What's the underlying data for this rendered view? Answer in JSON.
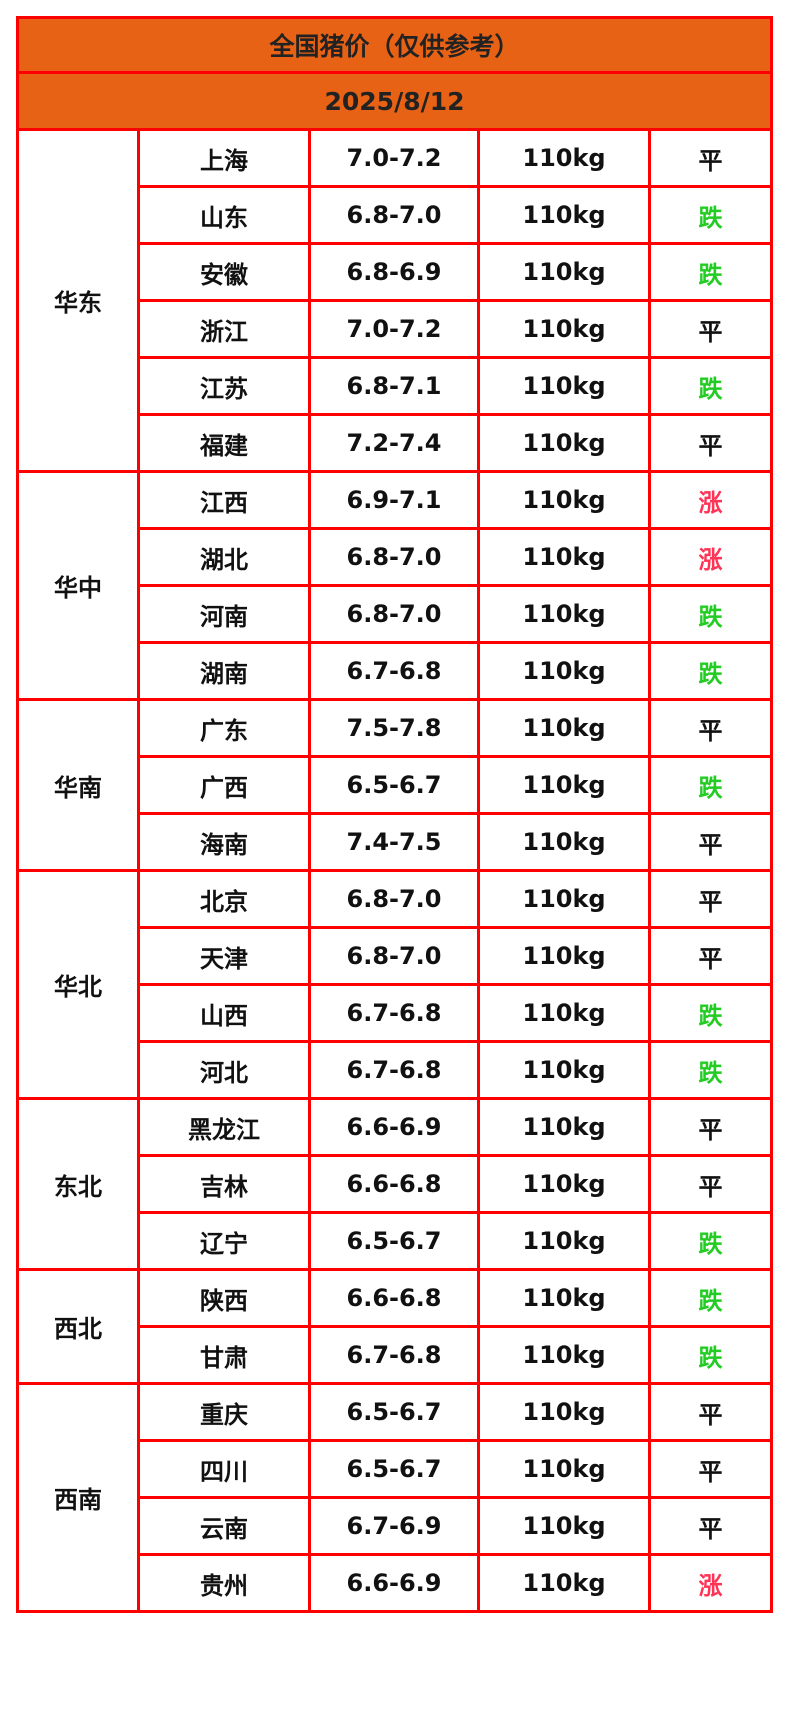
{
  "title": "全国猪价（仅供参考）",
  "date": "2025/8/12",
  "colors": {
    "header_bg": "#e86216",
    "border": "#ff0000",
    "flat": "#111111",
    "down": "#22cc22",
    "up": "#ff3355"
  },
  "regions": [
    {
      "name": "华东",
      "rows": [
        {
          "province": "上海",
          "price": "7.0-7.2",
          "weight": "110kg",
          "trend": "平"
        },
        {
          "province": "山东",
          "price": "6.8-7.0",
          "weight": "110kg",
          "trend": "跌"
        },
        {
          "province": "安徽",
          "price": "6.8-6.9",
          "weight": "110kg",
          "trend": "跌"
        },
        {
          "province": "浙江",
          "price": "7.0-7.2",
          "weight": "110kg",
          "trend": "平"
        },
        {
          "province": "江苏",
          "price": "6.8-7.1",
          "weight": "110kg",
          "trend": "跌"
        },
        {
          "province": "福建",
          "price": "7.2-7.4",
          "weight": "110kg",
          "trend": "平"
        }
      ]
    },
    {
      "name": "华中",
      "rows": [
        {
          "province": "江西",
          "price": "6.9-7.1",
          "weight": "110kg",
          "trend": "涨"
        },
        {
          "province": "湖北",
          "price": "6.8-7.0",
          "weight": "110kg",
          "trend": "涨"
        },
        {
          "province": "河南",
          "price": "6.8-7.0",
          "weight": "110kg",
          "trend": "跌"
        },
        {
          "province": "湖南",
          "price": "6.7-6.8",
          "weight": "110kg",
          "trend": "跌"
        }
      ]
    },
    {
      "name": "华南",
      "rows": [
        {
          "province": "广东",
          "price": "7.5-7.8",
          "weight": "110kg",
          "trend": "平"
        },
        {
          "province": "广西",
          "price": "6.5-6.7",
          "weight": "110kg",
          "trend": "跌"
        },
        {
          "province": "海南",
          "price": "7.4-7.5",
          "weight": "110kg",
          "trend": "平"
        }
      ]
    },
    {
      "name": "华北",
      "rows": [
        {
          "province": "北京",
          "price": "6.8-7.0",
          "weight": "110kg",
          "trend": "平"
        },
        {
          "province": "天津",
          "price": "6.8-7.0",
          "weight": "110kg",
          "trend": "平"
        },
        {
          "province": "山西",
          "price": "6.7-6.8",
          "weight": "110kg",
          "trend": "跌"
        },
        {
          "province": "河北",
          "price": "6.7-6.8",
          "weight": "110kg",
          "trend": "跌"
        }
      ]
    },
    {
      "name": "东北",
      "rows": [
        {
          "province": "黑龙江",
          "price": "6.6-6.9",
          "weight": "110kg",
          "trend": "平"
        },
        {
          "province": "吉林",
          "price": "6.6-6.8",
          "weight": "110kg",
          "trend": "平"
        },
        {
          "province": "辽宁",
          "price": "6.5-6.7",
          "weight": "110kg",
          "trend": "跌"
        }
      ]
    },
    {
      "name": "西北",
      "rows": [
        {
          "province": "陕西",
          "price": "6.6-6.8",
          "weight": "110kg",
          "trend": "跌"
        },
        {
          "province": "甘肃",
          "price": "6.7-6.8",
          "weight": "110kg",
          "trend": "跌"
        }
      ]
    },
    {
      "name": "西南",
      "rows": [
        {
          "province": "重庆",
          "price": "6.5-6.7",
          "weight": "110kg",
          "trend": "平"
        },
        {
          "province": "四川",
          "price": "6.5-6.7",
          "weight": "110kg",
          "trend": "平"
        },
        {
          "province": "云南",
          "price": "6.7-6.9",
          "weight": "110kg",
          "trend": "平"
        },
        {
          "province": "贵州",
          "price": "6.6-6.9",
          "weight": "110kg",
          "trend": "涨"
        }
      ]
    }
  ]
}
